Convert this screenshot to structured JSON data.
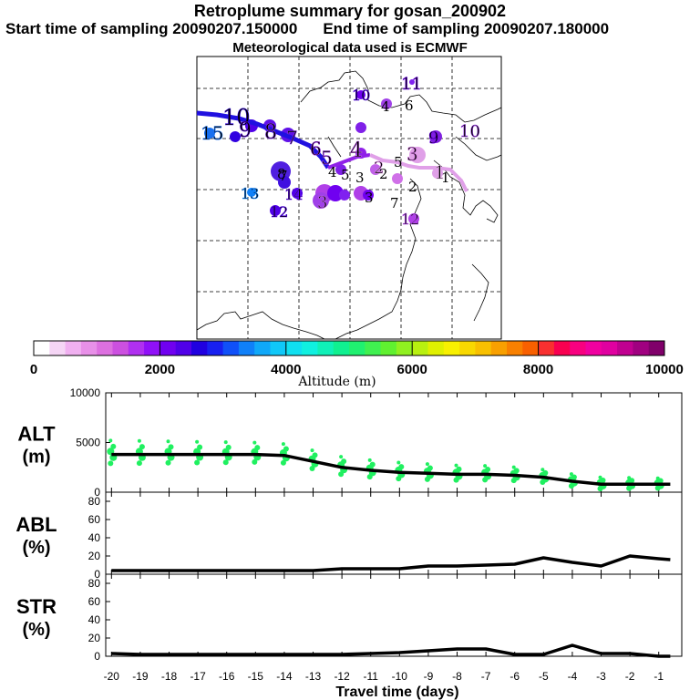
{
  "header": {
    "title": "Retroplume summary for gosan_200902",
    "start": "Start time of sampling 20090207.150000",
    "end": "End time of sampling 20090207.180000",
    "met": "Meteorological data used is ECMWF"
  },
  "colorbar": {
    "label": "Altitude (m)",
    "ticks": [
      "0",
      "2000",
      "4000",
      "6000",
      "8000",
      "10000"
    ],
    "colors": [
      "#ffffff",
      "#f5d5f5",
      "#f0b0f0",
      "#e890e8",
      "#dd70e0",
      "#cc50e0",
      "#b030f0",
      "#9010f8",
      "#7000f0",
      "#5000e8",
      "#2000e0",
      "#1820f0",
      "#1050f8",
      "#1080f8",
      "#10a8f8",
      "#10c8f8",
      "#10e0f0",
      "#10f0e0",
      "#10f0b8",
      "#10f090",
      "#20f070",
      "#40f050",
      "#60f030",
      "#90f020",
      "#b8f010",
      "#e0f000",
      "#f8f000",
      "#f8d800",
      "#f8c000",
      "#f8a000",
      "#f88000",
      "#f86000",
      "#f83030",
      "#f80050",
      "#f80080",
      "#f000a0",
      "#e000a0",
      "#c00090",
      "#a00080",
      "#80006a"
    ]
  },
  "map": {
    "labels": [
      {
        "t": "15",
        "c": "#1870f0"
      },
      {
        "t": "10",
        "c": "#3000e0"
      },
      {
        "t": "9",
        "c": "#6010e8"
      },
      {
        "t": "8",
        "c": "#8030e0"
      },
      {
        "t": "7",
        "c": "#8030e0"
      },
      {
        "t": "6",
        "c": "#9a30e0"
      },
      {
        "t": "5",
        "c": "#a040e8"
      },
      {
        "t": "4",
        "c": "#c060e8"
      },
      {
        "t": "3",
        "c": "#d070e0"
      },
      {
        "t": "2",
        "c": "#e090e8"
      },
      {
        "t": "1",
        "c": "#f0b8f0"
      },
      {
        "t": "11",
        "c": "#7000f0"
      },
      {
        "t": "10",
        "c": "#5000e8"
      },
      {
        "t": "13",
        "c": "#1080f8"
      },
      {
        "t": "14",
        "c": "#6010e8"
      },
      {
        "t": "12",
        "c": "#5000e8"
      },
      {
        "t": "12",
        "c": "#b040e8"
      },
      {
        "t": "9",
        "c": "#7000f0"
      },
      {
        "t": "10",
        "c": "#a040e8"
      },
      {
        "t": "3",
        "c": "#c060e8"
      }
    ],
    "small_labels": [
      "4",
      "6",
      "8",
      "5",
      "3",
      "4",
      "5",
      "3",
      "2",
      "2",
      "7",
      "1",
      "7"
    ]
  },
  "chart_data": {
    "type": "line",
    "xlabel": "Travel time (days)",
    "x": [
      -20,
      -19,
      -18,
      -17,
      -16,
      -15,
      -14,
      -13,
      -12,
      -11,
      -10,
      -9,
      -8,
      -7,
      -6,
      -5,
      -4,
      -3,
      -2,
      -1
    ],
    "x_tick_labels": [
      "-20",
      "-19",
      "-18",
      "-17",
      "-16",
      "-15",
      "-14",
      "-13",
      "-12",
      "-11",
      "-10",
      "-9",
      "-8",
      "-7",
      "-6",
      "-5",
      "-4",
      "-3",
      "-2",
      "-1"
    ],
    "panels": [
      {
        "name": "ALT",
        "unit": "(m)",
        "ylim": [
          0,
          10000
        ],
        "yticks": [
          "10000",
          "5000",
          "0"
        ],
        "x": [
          -20,
          -19,
          -18,
          -17,
          -16,
          -15,
          -14,
          -13,
          -12,
          -11,
          -10,
          -9,
          -8,
          -7,
          -6,
          -5,
          -4,
          -3,
          -2,
          -1,
          -0.6
        ],
        "values": [
          3800,
          3800,
          3800,
          3800,
          3800,
          3800,
          3700,
          3100,
          2500,
          2200,
          2000,
          1900,
          1800,
          1800,
          1700,
          1500,
          1100,
          800,
          800,
          800,
          800
        ],
        "scatter_color": "#20f060"
      },
      {
        "name": "ABL",
        "unit": "(%)",
        "ylim": [
          0,
          90
        ],
        "yticks": [
          "80",
          "60",
          "40",
          "20",
          "0"
        ],
        "x": [
          -20,
          -19,
          -18,
          -17,
          -16,
          -15,
          -14,
          -13,
          -12,
          -11,
          -10,
          -9,
          -8,
          -7,
          -6,
          -5,
          -4,
          -3,
          -2,
          -1,
          -0.6
        ],
        "values": [
          4,
          4,
          4,
          4,
          4,
          4,
          4,
          4,
          6,
          6,
          6,
          9,
          9,
          10,
          11,
          18,
          13,
          9,
          20,
          17,
          16
        ]
      },
      {
        "name": "STR",
        "unit": "(%)",
        "ylim": [
          0,
          90
        ],
        "yticks": [
          "80",
          "60",
          "40",
          "20",
          "0"
        ],
        "x": [
          -20,
          -19,
          -18,
          -17,
          -16,
          -15,
          -14,
          -13,
          -12,
          -11,
          -10,
          -9,
          -8,
          -7,
          -6,
          -5,
          -4,
          -3,
          -2,
          -1,
          -0.6
        ],
        "values": [
          3,
          2,
          2,
          2,
          2,
          2,
          2,
          2,
          2,
          3,
          4,
          6,
          8,
          8,
          2,
          2,
          12,
          3,
          3,
          0,
          0
        ]
      }
    ]
  }
}
